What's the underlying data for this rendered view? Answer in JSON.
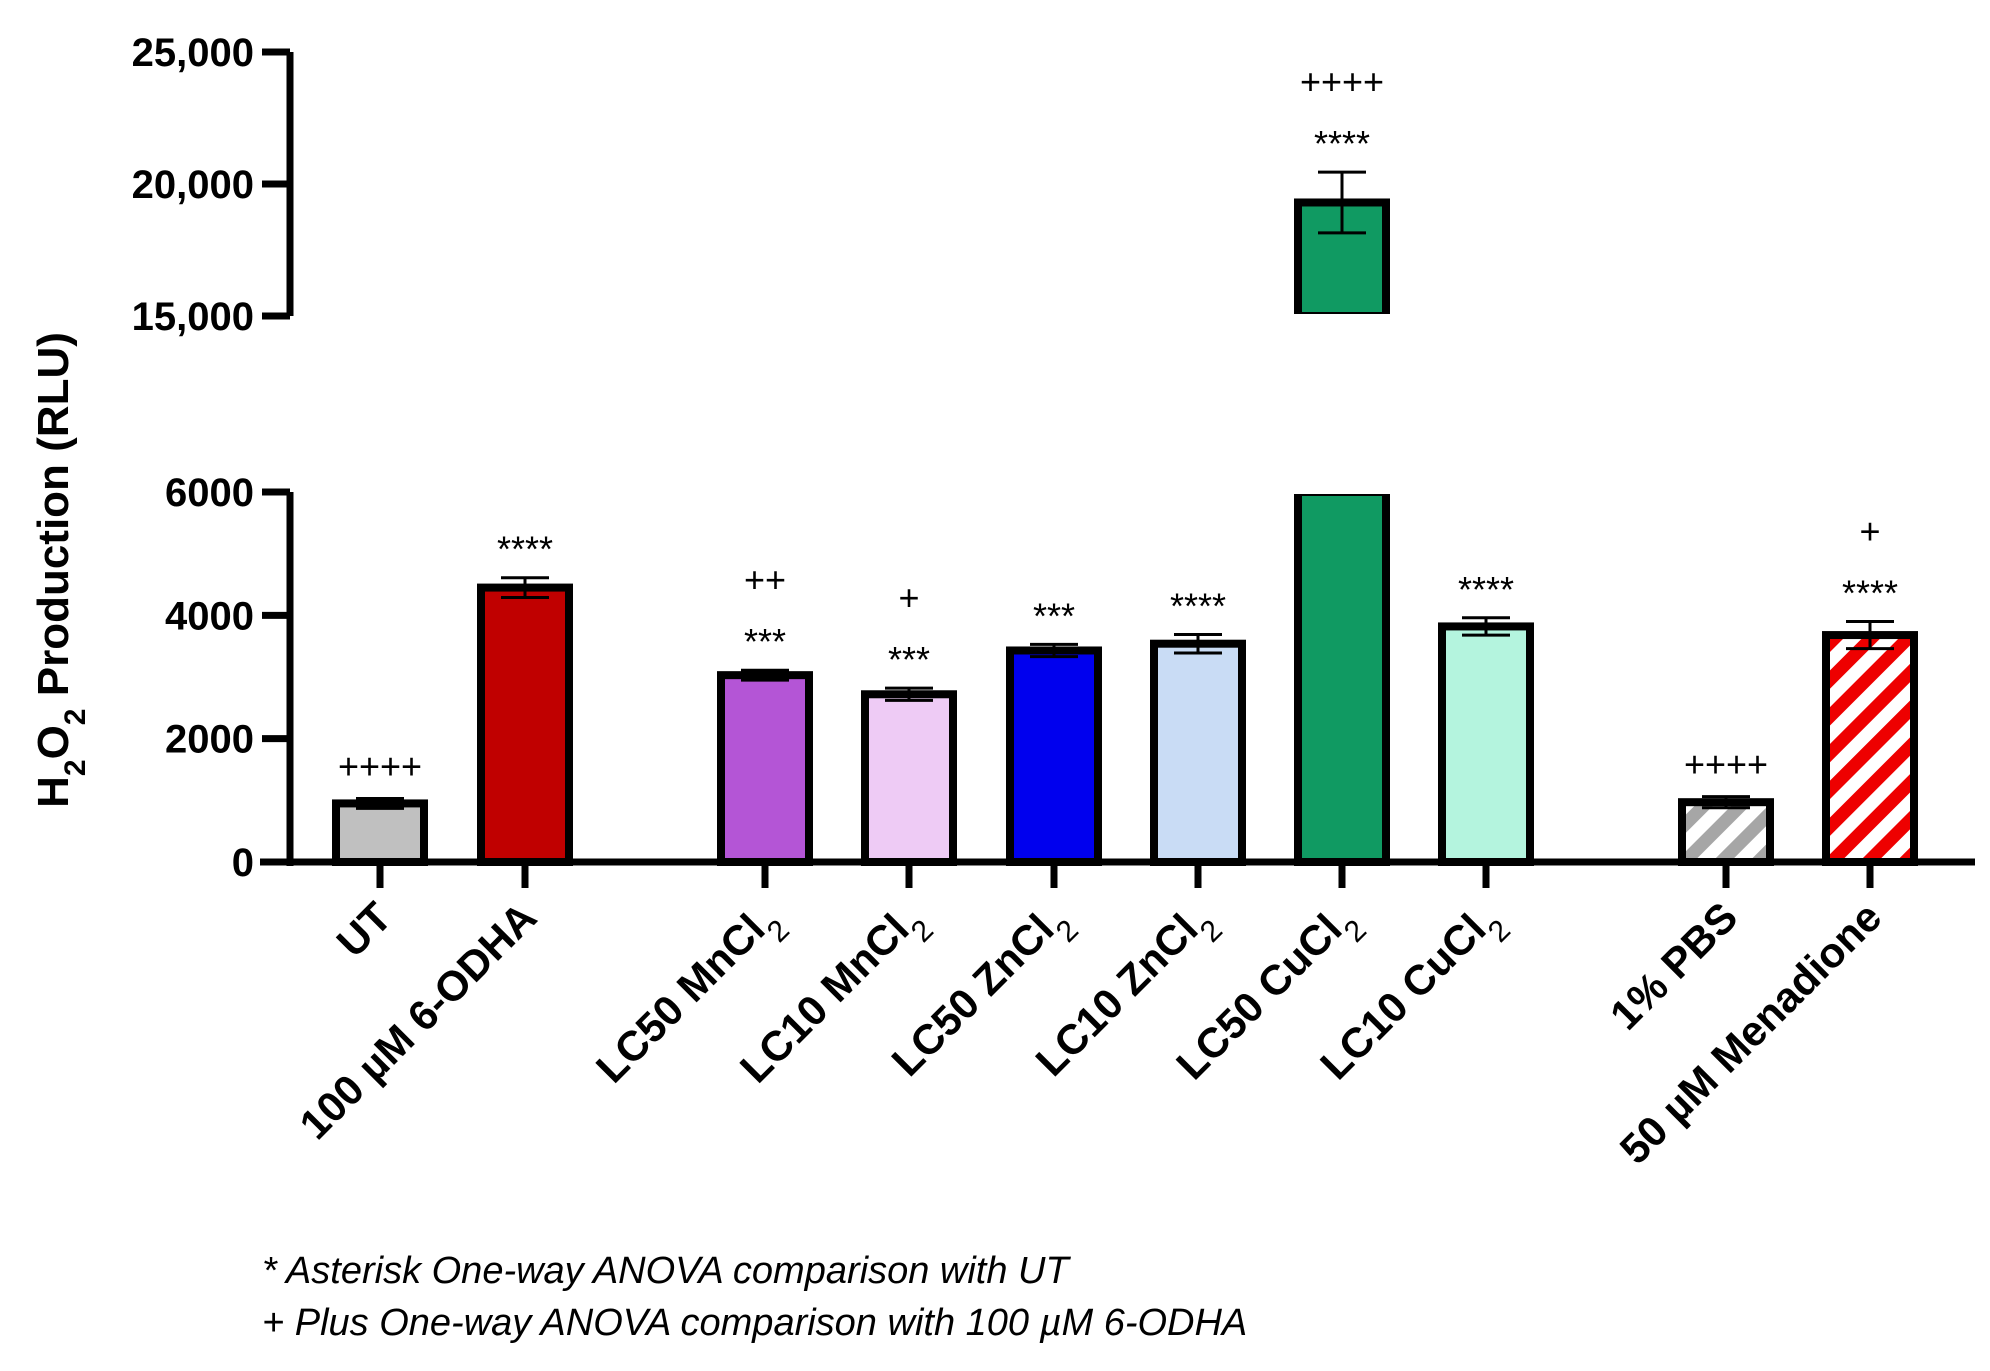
{
  "chart_data": {
    "type": "bar",
    "ylabel": "H2O2 Production (RLU)",
    "ylabel_parts": {
      "a": "H",
      "sub1": "2",
      "b": "O",
      "sub2": "2",
      "c": " Production (RLU)"
    },
    "y_segments": [
      {
        "range": [
          0,
          6000
        ],
        "ticks": [
          0,
          2000,
          4000,
          6000
        ],
        "tick_labels": [
          "0",
          "2000",
          "4000",
          "6000"
        ]
      },
      {
        "range": [
          15000,
          25000
        ],
        "ticks": [
          15000,
          20000,
          25000
        ],
        "tick_labels": [
          "15,000",
          "20,000",
          "25,000"
        ]
      }
    ],
    "categories": [
      {
        "label": "UT",
        "sub": "",
        "value": 950,
        "error": 80,
        "color": "#c0c0c0",
        "pattern": "solid",
        "asterisks": "",
        "plus": "++++",
        "group": 0
      },
      {
        "label": "100 µM 6-ODHA",
        "sub": "",
        "value": 4450,
        "error": 160,
        "color": "#c00000",
        "pattern": "solid",
        "asterisks": "****",
        "plus": "",
        "group": 0
      },
      {
        "label": "LC50 MnCl",
        "sub": "2",
        "value": 3030,
        "error": 80,
        "color": "#b455d6",
        "pattern": "solid",
        "asterisks": "***",
        "plus": "++",
        "group": 1
      },
      {
        "label": "LC10 MnCl",
        "sub": "2",
        "value": 2720,
        "error": 100,
        "color": "#eecbf5",
        "pattern": "solid",
        "asterisks": "***",
        "plus": "+",
        "group": 1
      },
      {
        "label": "LC50 ZnCl",
        "sub": "2",
        "value": 3430,
        "error": 100,
        "color": "#0000ee",
        "pattern": "solid",
        "asterisks": "***",
        "plus": "",
        "group": 1
      },
      {
        "label": "LC10 ZnCl",
        "sub": "2",
        "value": 3540,
        "error": 150,
        "color": "#c9dcf5",
        "pattern": "solid",
        "asterisks": "****",
        "plus": "",
        "group": 1
      },
      {
        "label": "LC50 CuCl",
        "sub": "2",
        "value": 19300,
        "error": 1150,
        "color": "#109a62",
        "pattern": "solid",
        "asterisks": "****",
        "plus": "++++",
        "group": 1
      },
      {
        "label": "LC10 CuCl",
        "sub": "2",
        "value": 3820,
        "error": 140,
        "color": "#b4f4de",
        "pattern": "solid",
        "asterisks": "****",
        "plus": "",
        "group": 1
      },
      {
        "label": "1% PBS",
        "sub": "",
        "value": 970,
        "error": 90,
        "color": "#a6a6a6",
        "pattern": "striped",
        "asterisks": "",
        "plus": "++++",
        "group": 2
      },
      {
        "label": "50 µM Menadione",
        "sub": "",
        "value": 3680,
        "error": 220,
        "color": "#ee0000",
        "pattern": "striped",
        "asterisks": "****",
        "plus": "+",
        "group": 2
      }
    ]
  },
  "legend": {
    "asterisk": "* Asterisk One-way ANOVA comparison with UT",
    "plus": "+ Plus One-way ANOVA comparison with 100 µM 6-ODHA"
  }
}
